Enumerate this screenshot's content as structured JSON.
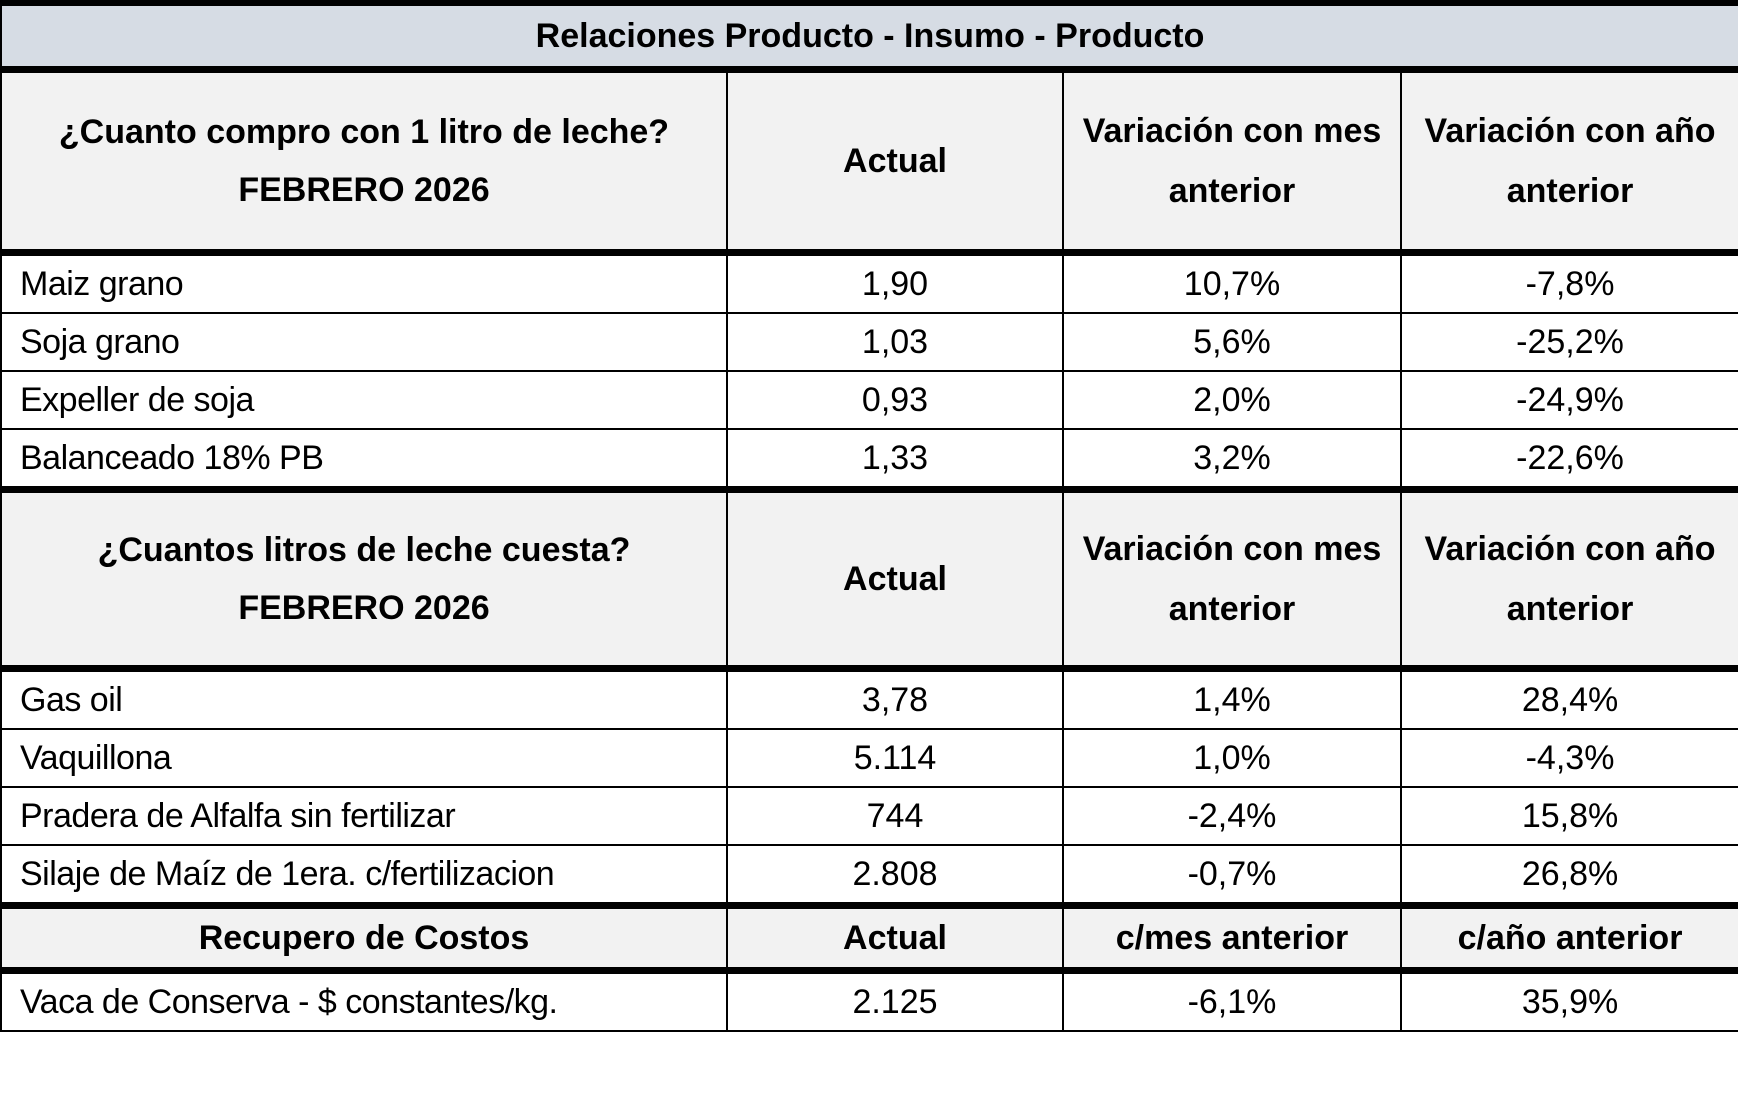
{
  "title": "Relaciones Producto - Insumo - Producto",
  "sections": [
    {
      "header": {
        "question": "¿Cuanto compro con 1 litro de leche?",
        "period": "FEBRERO 2026",
        "columns": [
          "Actual",
          "Variación con mes anterior",
          "Variación con año anterior"
        ]
      },
      "rows": [
        [
          "Maiz grano",
          "1,90",
          "10,7%",
          "-7,8%"
        ],
        [
          "Soja grano",
          "1,03",
          "5,6%",
          "-25,2%"
        ],
        [
          "Expeller de soja",
          "0,93",
          "2,0%",
          "-24,9%"
        ],
        [
          "Balanceado 18% PB",
          "1,33",
          "3,2%",
          "-22,6%"
        ]
      ]
    },
    {
      "header": {
        "question": "¿Cuantos litros de leche cuesta?",
        "period": "FEBRERO 2026",
        "columns": [
          "Actual",
          "Variación con mes anterior",
          "Variación con año anterior"
        ]
      },
      "rows": [
        [
          "Gas oil",
          "3,78",
          "1,4%",
          "28,4%"
        ],
        [
          "Vaquillona",
          "5.114",
          "1,0%",
          "-4,3%"
        ],
        [
          "Pradera de Alfalfa sin fertilizar",
          "744",
          "-2,4%",
          "15,8%"
        ],
        [
          "Silaje de Maíz de 1era. c/fertilizacion",
          "2.808",
          "-0,7%",
          "26,8%"
        ]
      ]
    },
    {
      "header": {
        "question": "Recupero de Costos",
        "columns": [
          "Actual",
          "c/mes anterior",
          "c/año anterior"
        ]
      },
      "rows": [
        [
          "Vaca de Conserva - $ constantes/kg.",
          "2.125",
          "-6,1%",
          "35,9%"
        ]
      ]
    }
  ]
}
